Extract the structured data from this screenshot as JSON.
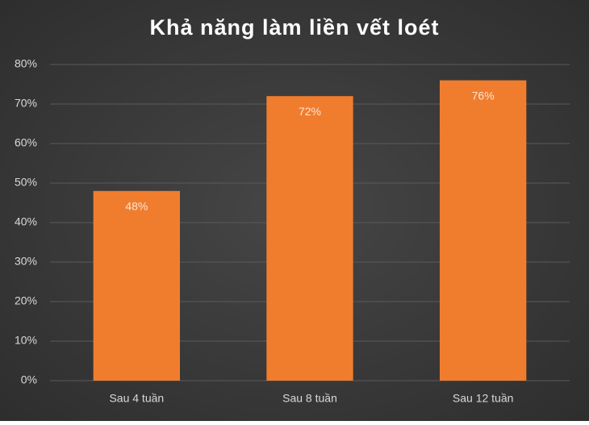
{
  "chart_data": {
    "type": "bar",
    "title": "Khả năng làm liền vết loét",
    "categories": [
      "Sau 4 tuần",
      "Sau 8 tuần",
      "Sau 12 tuần"
    ],
    "values": [
      48,
      72,
      76
    ],
    "value_labels": [
      "48%",
      "72%",
      "76%"
    ],
    "color": "#f07d2e",
    "ylim": [
      0,
      80
    ],
    "yticks": [
      {
        "value": 0,
        "label": "0%"
      },
      {
        "value": 10,
        "label": "10%"
      },
      {
        "value": 20,
        "label": "20%"
      },
      {
        "value": 30,
        "label": "30%"
      },
      {
        "value": 40,
        "label": "40%"
      },
      {
        "value": 50,
        "label": "50%"
      },
      {
        "value": 60,
        "label": "60%"
      },
      {
        "value": 70,
        "label": "70%"
      },
      {
        "value": 80,
        "label": "80%"
      }
    ],
    "grid": true
  }
}
